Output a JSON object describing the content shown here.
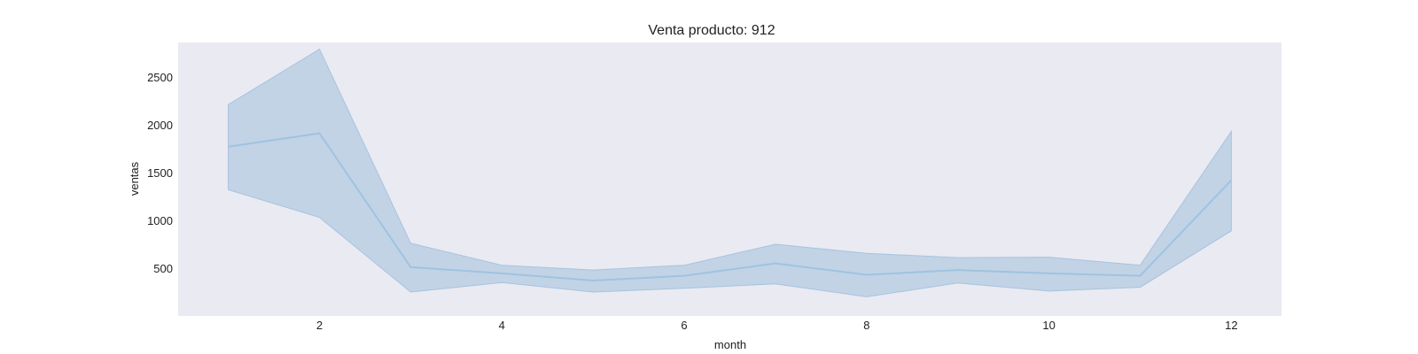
{
  "chart_data": {
    "type": "line",
    "title": "Venta producto: 912",
    "xlabel": "month",
    "ylabel": "ventas",
    "xlim": [
      0.45,
      12.55
    ],
    "ylim": [
      0,
      2860
    ],
    "xticks": [
      2,
      4,
      6,
      8,
      10,
      12
    ],
    "yticks": [
      500,
      1000,
      1500,
      2000,
      2500
    ],
    "grid": false,
    "colors": {
      "line": "#9fc3e0",
      "band": "#a7c3de",
      "plot_bg": "#eaeaf2"
    },
    "series": [
      {
        "x": [
          1,
          2,
          3,
          4,
          5,
          6,
          7,
          8,
          9,
          10,
          11,
          12
        ],
        "values": [
          1770,
          1910,
          510,
          445,
          370,
          420,
          550,
          430,
          480,
          445,
          420,
          1420
        ],
        "lower": [
          1320,
          1030,
          250,
          350,
          250,
          290,
          335,
          200,
          345,
          260,
          300,
          890
        ],
        "upper": [
          2210,
          2790,
          760,
          530,
          480,
          530,
          750,
          655,
          610,
          615,
          530,
          1930
        ]
      }
    ]
  }
}
